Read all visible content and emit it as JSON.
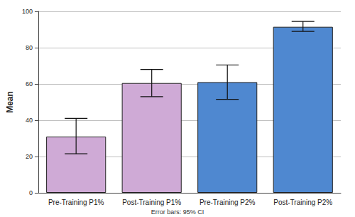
{
  "chart_data": {
    "type": "bar",
    "categories": [
      "Pre-Training P1%",
      "Post-Training P1%",
      "Pre-Training P2%",
      "Post-Training P2%"
    ],
    "values": [
      31,
      60.5,
      61,
      91.5
    ],
    "error_low": [
      21.5,
      53,
      51.5,
      89
    ],
    "error_high": [
      41,
      68,
      70.5,
      94.5
    ],
    "colors": [
      "#cfaad6",
      "#cfaad6",
      "#4f88d0",
      "#4f88d0"
    ],
    "ylabel": "Mean",
    "annotations": [
      "Error bars: 95% CI"
    ],
    "ylim": [
      0,
      100
    ],
    "yticks": [
      0,
      20,
      40,
      60,
      80,
      100
    ],
    "grid": true
  }
}
